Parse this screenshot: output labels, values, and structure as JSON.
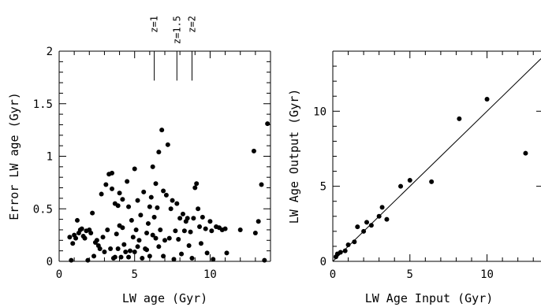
{
  "chart_data": [
    {
      "type": "scatter",
      "xlabel": "LW age (Gyr)",
      "ylabel": "Error LW age (Gyr)",
      "xlim": [
        0,
        14
      ],
      "ylim": [
        0,
        2
      ],
      "xticks": [
        0,
        5,
        10
      ],
      "yticks": [
        0,
        0.5,
        1,
        1.5,
        2
      ],
      "ytick_labels": [
        "0",
        "0.5",
        "1",
        "1.5",
        "2"
      ],
      "annotations": [
        {
          "label": "z=1",
          "x": 6.3
        },
        {
          "label": "z=1.5",
          "x": 7.8
        },
        {
          "label": "z=2",
          "x": 8.8
        }
      ],
      "points": [
        [
          0.7,
          0.23
        ],
        [
          0.8,
          0.01
        ],
        [
          0.9,
          0.17
        ],
        [
          1.0,
          0.25
        ],
        [
          1.1,
          0.22
        ],
        [
          1.2,
          0.39
        ],
        [
          1.3,
          0.27
        ],
        [
          1.4,
          0.3
        ],
        [
          1.5,
          0.31
        ],
        [
          1.6,
          0.24
        ],
        [
          1.7,
          0.22
        ],
        [
          1.8,
          0.29
        ],
        [
          1.9,
          0.01
        ],
        [
          2.0,
          0.3
        ],
        [
          2.1,
          0.27
        ],
        [
          2.2,
          0.46
        ],
        [
          2.3,
          0.05
        ],
        [
          2.4,
          0.18
        ],
        [
          2.5,
          0.2
        ],
        [
          2.6,
          0.15
        ],
        [
          2.7,
          0.12
        ],
        [
          2.8,
          0.64
        ],
        [
          2.9,
          0.23
        ],
        [
          3.0,
          0.09
        ],
        [
          3.1,
          0.73
        ],
        [
          3.2,
          0.3
        ],
        [
          3.3,
          0.83
        ],
        [
          3.4,
          0.12
        ],
        [
          3.5,
          0.84
        ],
        [
          3.5,
          0.69
        ],
        [
          3.6,
          0.03
        ],
        [
          3.7,
          0.04
        ],
        [
          3.7,
          0.55
        ],
        [
          3.8,
          0.26
        ],
        [
          3.9,
          0.12
        ],
        [
          4.0,
          0.34
        ],
        [
          4.0,
          0.65
        ],
        [
          4.1,
          0.04
        ],
        [
          4.2,
          0.59
        ],
        [
          4.3,
          0.16
        ],
        [
          4.4,
          0.09
        ],
        [
          4.5,
          0.76
        ],
        [
          4.6,
          0.04
        ],
        [
          4.6,
          0.52
        ],
        [
          4.7,
          0.1
        ],
        [
          4.8,
          0.39
        ],
        [
          4.9,
          0.23
        ],
        [
          5.0,
          0.09
        ],
        [
          5.0,
          0.88
        ],
        [
          5.1,
          0.3
        ],
        [
          5.2,
          0.58
        ],
        [
          5.3,
          0.2
        ],
        [
          5.4,
          0.44
        ],
        [
          5.5,
          0.03
        ],
        [
          5.6,
          0.66
        ],
        [
          5.7,
          0.12
        ],
        [
          5.8,
          0.27
        ],
        [
          5.9,
          0.36
        ],
        [
          6.0,
          0.52
        ],
        [
          6.0,
          0.05
        ],
        [
          6.1,
          0.61
        ],
        [
          6.2,
          0.25
        ],
        [
          6.2,
          0.9
        ],
        [
          6.3,
          0.42
        ],
        [
          6.4,
          0.74
        ],
        [
          6.5,
          0.51
        ],
        [
          6.6,
          1.04
        ],
        [
          6.7,
          0.3
        ],
        [
          6.8,
          1.25
        ],
        [
          6.9,
          0.05
        ],
        [
          7.0,
          0.2
        ],
        [
          7.1,
          0.63
        ],
        [
          7.2,
          1.11
        ],
        [
          7.3,
          0.22
        ],
        [
          7.4,
          0.5
        ],
        [
          7.5,
          0.58
        ],
        [
          7.6,
          0.02
        ],
        [
          7.7,
          0.29
        ],
        [
          7.8,
          0.55
        ],
        [
          7.9,
          0.21
        ],
        [
          8.0,
          0.41
        ],
        [
          8.1,
          0.07
        ],
        [
          8.2,
          0.45
        ],
        [
          8.3,
          0.29
        ],
        [
          8.4,
          0.38
        ],
        [
          8.5,
          0.41
        ],
        [
          8.6,
          0.15
        ],
        [
          8.7,
          0.28
        ],
        [
          8.8,
          0.03
        ],
        [
          8.9,
          0.41
        ],
        [
          9.0,
          0.7
        ],
        [
          9.1,
          0.74
        ],
        [
          9.2,
          0.5
        ],
        [
          9.3,
          0.33
        ],
        [
          9.4,
          0.17
        ],
        [
          9.5,
          0.42
        ],
        [
          9.7,
          0.31
        ],
        [
          9.8,
          0.08
        ],
        [
          10.0,
          0.38
        ],
        [
          10.1,
          0.29
        ],
        [
          10.2,
          0.02
        ],
        [
          10.4,
          0.33
        ],
        [
          10.6,
          0.32
        ],
        [
          10.8,
          0.3
        ],
        [
          11.0,
          0.31
        ],
        [
          11.1,
          0.08
        ],
        [
          12.0,
          0.3
        ],
        [
          12.9,
          1.05
        ],
        [
          13.0,
          0.27
        ],
        [
          13.2,
          0.38
        ],
        [
          13.4,
          0.73
        ],
        [
          13.6,
          0.01
        ],
        [
          13.8,
          1.31
        ],
        [
          5.2,
          0.14
        ],
        [
          6.9,
          0.67
        ],
        [
          6.4,
          0.22
        ],
        [
          4.2,
          0.32
        ],
        [
          5.8,
          0.11
        ],
        [
          3.9,
          0.53
        ],
        [
          6.6,
          0.14
        ]
      ]
    },
    {
      "type": "scatter",
      "xlabel": "LW Age Input (Gyr)",
      "ylabel": "LW Age Output (Gyr)",
      "xlim": [
        0,
        13.5
      ],
      "ylim": [
        0,
        14
      ],
      "xticks": [
        0,
        5,
        10
      ],
      "yticks": [
        0,
        5,
        10
      ],
      "reference_line": "y = x",
      "points": [
        [
          0.2,
          0.3
        ],
        [
          0.3,
          0.5
        ],
        [
          0.5,
          0.6
        ],
        [
          0.8,
          0.7
        ],
        [
          1.0,
          1.1
        ],
        [
          1.4,
          1.3
        ],
        [
          1.6,
          2.3
        ],
        [
          2.0,
          2.0
        ],
        [
          2.2,
          2.6
        ],
        [
          2.5,
          2.4
        ],
        [
          3.0,
          3.0
        ],
        [
          3.2,
          3.6
        ],
        [
          3.5,
          2.8
        ],
        [
          4.4,
          5.0
        ],
        [
          5.0,
          5.4
        ],
        [
          6.4,
          5.3
        ],
        [
          8.2,
          9.5
        ],
        [
          10.0,
          10.8
        ],
        [
          12.5,
          7.2
        ]
      ]
    }
  ]
}
